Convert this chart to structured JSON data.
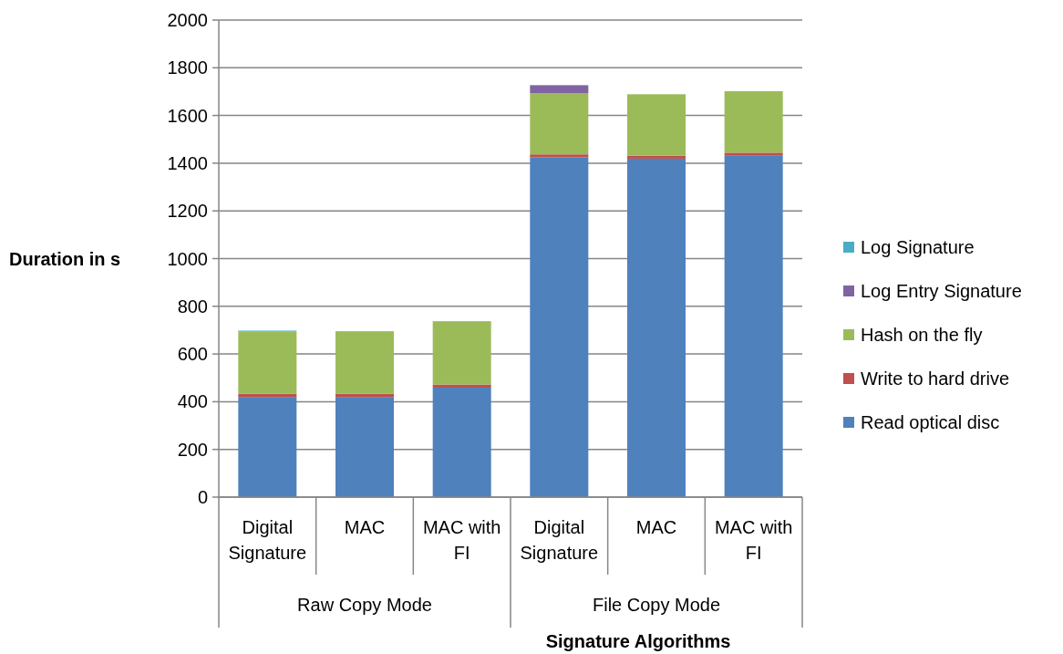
{
  "chart_data": {
    "type": "bar",
    "stacked": true,
    "ylabel": "Duration in s",
    "xlabel": "Signature Algorithms",
    "categories": [
      "Digital Signature",
      "MAC",
      "MAC with FI",
      "Digital Signature",
      "MAC",
      "MAC with FI"
    ],
    "annotations": [
      "Raw Copy Mode",
      "File Copy Mode"
    ],
    "series": [
      {
        "name": "Read optical disc",
        "color": "#4f81bd",
        "values": [
          420,
          420,
          459,
          1424,
          1419,
          1431
        ]
      },
      {
        "name": "Write to hard drive",
        "color": "#c0504d",
        "values": [
          13,
          13,
          13,
          13,
          12,
          13
        ]
      },
      {
        "name": "Hash on the fly",
        "color": "#9bbb59",
        "values": [
          262,
          261,
          264,
          257,
          258,
          258
        ]
      },
      {
        "name": "Log Entry Signature",
        "color": "#8064a2",
        "values": [
          0,
          0,
          0,
          33,
          0,
          0
        ]
      },
      {
        "name": "Log Signature",
        "color": "#4bacc6",
        "values": [
          3,
          2,
          2,
          0,
          null,
          null
        ]
      }
    ],
    "ylim": [
      0,
      2000
    ],
    "yticks": [
      0,
      200,
      400,
      600,
      800,
      1000,
      1200,
      1400,
      1600,
      1800,
      2000
    ],
    "grid": "y",
    "legend": "right"
  }
}
